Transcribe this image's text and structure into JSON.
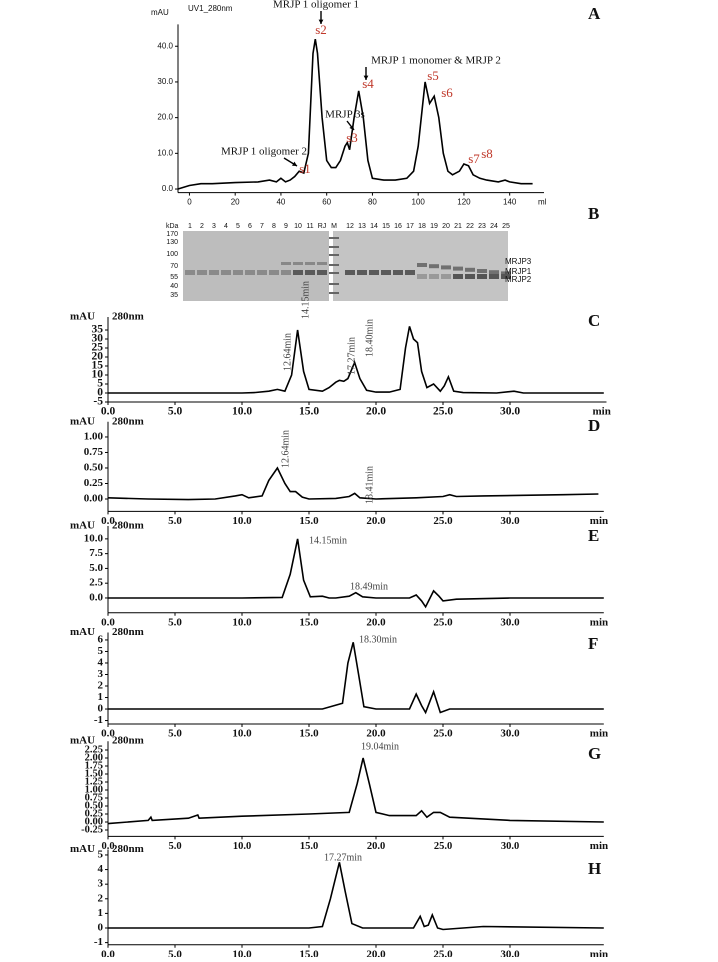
{
  "chart_data": [
    {
      "type": "line",
      "label": "A",
      "title": "UV1_280nm",
      "y_label": "mAU",
      "x_label": "ml",
      "color": "#000000",
      "peak_label_color": "#c0392b",
      "annotations": [
        "MRJP 1 oligomer 1",
        "MRJP 1 monomer & MRJP 2",
        "MRJP 3s",
        "MRJP 1 oligomer 2"
      ],
      "peak_labels": [
        "s1",
        "s2",
        "s3",
        "s4",
        "s5",
        "s6",
        "s7",
        "s8"
      ],
      "x": [
        -5,
        0,
        5,
        10,
        20,
        30,
        35,
        38,
        40,
        42,
        44,
        46,
        48,
        50,
        52,
        54,
        55,
        56,
        58,
        60,
        62,
        64,
        66,
        68,
        69,
        70,
        72,
        74,
        76,
        78,
        80,
        85,
        90,
        95,
        98,
        100,
        103,
        105,
        107,
        109,
        111,
        113,
        115,
        118,
        120,
        122,
        124,
        127,
        130,
        135,
        138,
        140,
        145,
        150
      ],
      "values": [
        0,
        1,
        1.5,
        1.5,
        1.8,
        2,
        2.5,
        2,
        3,
        2,
        2.5,
        3.5,
        5,
        4.5,
        10,
        38,
        42,
        38,
        20,
        8,
        6,
        6,
        8,
        12,
        13,
        11,
        20,
        27.5,
        20,
        8,
        3,
        2.5,
        2.5,
        3,
        5,
        12,
        30,
        24,
        26,
        20,
        10,
        5,
        4,
        5,
        7,
        6.5,
        4,
        3,
        2.5,
        2,
        2.5,
        2,
        1.5,
        1.5
      ],
      "xlim": [
        -5,
        155
      ],
      "ylim": [
        -1,
        45
      ],
      "xticks": [
        0,
        20,
        40,
        60,
        80,
        100,
        120,
        140
      ],
      "yticks": [
        {
          "value": 0,
          "label": "0.0"
        },
        {
          "value": 10,
          "label": "10.0"
        },
        {
          "value": 20,
          "label": "20.0"
        },
        {
          "value": 30,
          "label": "30.0"
        },
        {
          "value": 40,
          "label": "40.0"
        }
      ]
    },
    {
      "type": "gel",
      "label": "B",
      "unit": "kDa",
      "lane_labels": [
        "1",
        "2",
        "3",
        "4",
        "5",
        "6",
        "7",
        "8",
        "9",
        "10",
        "11",
        "RJ",
        "M",
        "12",
        "13",
        "14",
        "15",
        "16",
        "17",
        "18",
        "19",
        "20",
        "21",
        "22",
        "23",
        "24",
        "25"
      ],
      "mw_labels": [
        "170",
        "130",
        "100",
        "70",
        "55",
        "40",
        "35"
      ],
      "band_labels": [
        "MRJP3",
        "MRJP1",
        "MRJP2"
      ]
    },
    {
      "type": "line",
      "label": "C",
      "title": "280nm",
      "y_label": "mAU",
      "x_label": "min",
      "color": "#000000",
      "peak_labels": [
        "12.64min",
        "14.15min",
        "17.27min",
        "18.40min"
      ],
      "x": [
        0,
        5,
        10,
        11,
        12,
        12.64,
        13.2,
        13.7,
        14.15,
        14.6,
        15,
        16,
        16.5,
        17,
        17.27,
        17.6,
        17.9,
        18.4,
        18.8,
        19.3,
        20,
        21,
        21.8,
        22.2,
        22.5,
        22.8,
        23.1,
        23.4,
        23.8,
        24.3,
        24.8,
        25.1,
        25.4,
        25.8,
        26.5,
        29,
        30.3,
        31,
        35,
        37
      ],
      "values": [
        0,
        0,
        0,
        0.3,
        1,
        2,
        1,
        10,
        35,
        12,
        2,
        1,
        3,
        6,
        7,
        6.5,
        8,
        17,
        8,
        1.5,
        0.5,
        0.5,
        2,
        25,
        37,
        30,
        28,
        12,
        3,
        5,
        1,
        4,
        9,
        1,
        0.2,
        0,
        1,
        0,
        0,
        0
      ],
      "xlim": [
        0,
        37.2
      ],
      "ylim": [
        -5,
        40
      ],
      "xticks": [
        {
          "value": 0,
          "label": "0.0"
        },
        {
          "value": 5,
          "label": "5.0"
        },
        {
          "value": 10,
          "label": "10.0"
        },
        {
          "value": 15,
          "label": "15.0"
        },
        {
          "value": 20,
          "label": "20.0"
        },
        {
          "value": 25,
          "label": "25.0"
        },
        {
          "value": 30,
          "label": "30.0"
        }
      ],
      "yticks": [
        -5,
        0,
        5,
        10,
        15,
        20,
        25,
        30,
        35
      ]
    },
    {
      "type": "line",
      "label": "D",
      "title": "280nm",
      "y_label": "mAU",
      "x_label": "min",
      "color": "#000000",
      "peak_labels": [
        "12.64min",
        "18.41min"
      ],
      "x": [
        0,
        3,
        6,
        8,
        9.5,
        10,
        10.5,
        11.5,
        12,
        12.64,
        13.2,
        13.6,
        14,
        14.5,
        15,
        17,
        18,
        18.41,
        18.8,
        20,
        23,
        25,
        25.5,
        26,
        28,
        31,
        34,
        36.6
      ],
      "values": [
        0.02,
        0,
        -0.01,
        0,
        0.05,
        0.07,
        0.02,
        0.05,
        0.3,
        0.5,
        0.25,
        0.12,
        0.12,
        0.03,
        0,
        0.01,
        0.04,
        0.09,
        0.02,
        0,
        0.02,
        0.04,
        0.07,
        0.04,
        0.05,
        0.06,
        0.07,
        0.08
      ],
      "xlim": [
        0,
        37
      ],
      "ylim": [
        -0.2,
        1.18
      ],
      "xticks": [
        {
          "value": 0,
          "label": "0.0"
        },
        {
          "value": 5,
          "label": "5.0"
        },
        {
          "value": 10,
          "label": "10.0"
        },
        {
          "value": 15,
          "label": "15.0"
        },
        {
          "value": 20,
          "label": "20.0"
        },
        {
          "value": 25,
          "label": "25.0"
        },
        {
          "value": 30,
          "label": "30.0"
        }
      ],
      "yticks": [
        {
          "value": 0,
          "label": "0.00"
        },
        {
          "value": 0.25,
          "label": "0.25"
        },
        {
          "value": 0.5,
          "label": "0.50"
        },
        {
          "value": 0.75,
          "label": "0.75"
        },
        {
          "value": 1,
          "label": "1.00"
        }
      ]
    },
    {
      "type": "line",
      "label": "E",
      "title": "280nm",
      "y_label": "mAU",
      "x_label": "min",
      "color": "#000000",
      "peak_labels": [
        "14.15min",
        "18.49min"
      ],
      "x": [
        0,
        10,
        13,
        13.6,
        14.15,
        14.6,
        15.1,
        16,
        16.5,
        17,
        18,
        18.49,
        19,
        20,
        22.5,
        23,
        23.4,
        23.7,
        24.3,
        24.7,
        25,
        26,
        30,
        37
      ],
      "values": [
        0,
        0,
        0.1,
        4,
        10,
        3,
        0.2,
        0.3,
        0,
        0,
        0.3,
        0.9,
        0.2,
        0,
        0,
        0.5,
        -0.5,
        -1.5,
        1.2,
        0.3,
        -0.5,
        -0.2,
        0,
        0
      ],
      "xlim": [
        0,
        37
      ],
      "ylim": [
        -2.5,
        11.5
      ],
      "xticks": [
        {
          "value": 0,
          "label": "0.0"
        },
        {
          "value": 5,
          "label": "5.0"
        },
        {
          "value": 10,
          "label": "10.0"
        },
        {
          "value": 15,
          "label": "15.0"
        },
        {
          "value": 20,
          "label": "20.0"
        },
        {
          "value": 25,
          "label": "25.0"
        },
        {
          "value": 30,
          "label": "30.0"
        }
      ],
      "yticks": [
        {
          "value": 0,
          "label": "0.0"
        },
        {
          "value": 2.5,
          "label": "2.5"
        },
        {
          "value": 5,
          "label": "5.0"
        },
        {
          "value": 7.5,
          "label": "7.5"
        },
        {
          "value": 10,
          "label": "10.0"
        }
      ]
    },
    {
      "type": "line",
      "label": "F",
      "title": "280nm",
      "y_label": "mAU",
      "x_label": "min",
      "color": "#000000",
      "peak_labels": [
        "18.30min"
      ],
      "x": [
        0,
        10,
        16,
        17.5,
        17.9,
        18.3,
        18.7,
        19.1,
        20,
        22.5,
        23,
        23.4,
        23.7,
        24.3,
        24.8,
        25.5,
        30,
        37
      ],
      "values": [
        0,
        0,
        0,
        0.5,
        4,
        5.8,
        3,
        0.2,
        0,
        0,
        1.3,
        0.3,
        -0.3,
        1.5,
        -0.3,
        0,
        0,
        0
      ],
      "xlim": [
        0,
        37
      ],
      "ylim": [
        -1.3,
        6.3
      ],
      "xticks": [
        {
          "value": 0,
          "label": "0.0"
        },
        {
          "value": 5,
          "label": "5.0"
        },
        {
          "value": 10,
          "label": "10.0"
        },
        {
          "value": 15,
          "label": "15.0"
        },
        {
          "value": 20,
          "label": "20.0"
        },
        {
          "value": 25,
          "label": "25.0"
        },
        {
          "value": 30,
          "label": "30.0"
        }
      ],
      "yticks": [
        -1,
        0,
        1,
        2,
        3,
        4,
        5,
        6
      ]
    },
    {
      "type": "line",
      "label": "G",
      "title": "280nm",
      "y_label": "mAU",
      "x_label": "min",
      "color": "#000000",
      "peak_labels": [
        "19.04min"
      ],
      "x": [
        0,
        3,
        3.2,
        3.3,
        6,
        6.7,
        6.8,
        10,
        15,
        18,
        18.6,
        19.04,
        19.5,
        20,
        21,
        23,
        23.4,
        23.8,
        24.3,
        24.8,
        25.5,
        30,
        37
      ],
      "values": [
        -0.05,
        0.05,
        0.15,
        0.05,
        0.12,
        0.22,
        0.12,
        0.18,
        0.25,
        0.3,
        1.2,
        2,
        1.2,
        0.3,
        0.2,
        0.2,
        0.35,
        0.15,
        0.3,
        0.3,
        0.15,
        0.05,
        0
      ],
      "xlim": [
        0,
        37
      ],
      "ylim": [
        -0.45,
        2.4
      ],
      "xticks": [
        {
          "value": 0,
          "label": "0.0"
        },
        {
          "value": 5,
          "label": "5.0"
        },
        {
          "value": 10,
          "label": "10.0"
        },
        {
          "value": 15,
          "label": "15.0"
        },
        {
          "value": 20,
          "label": "20.0"
        },
        {
          "value": 25,
          "label": "25.0"
        },
        {
          "value": 30,
          "label": "30.0"
        }
      ],
      "yticks": [
        -0.25,
        {
          "value": 0,
          "label": "0.00"
        },
        0.25,
        {
          "value": 0.5,
          "label": "0.50"
        },
        0.75,
        {
          "value": 1,
          "label": "1.00"
        },
        1.25,
        {
          "value": 1.5,
          "label": "1.50"
        },
        1.75,
        {
          "value": 2,
          "label": "2.00"
        },
        2.25
      ]
    },
    {
      "type": "line",
      "label": "H",
      "title": "280nm",
      "y_label": "mAU",
      "x_label": "min",
      "color": "#000000",
      "peak_labels": [
        "17.27min"
      ],
      "x": [
        0,
        10,
        15,
        16,
        16.6,
        17.27,
        17.7,
        18.2,
        19,
        22.8,
        23.3,
        23.6,
        23.9,
        24.2,
        24.6,
        25,
        28,
        37
      ],
      "values": [
        0,
        0,
        0,
        0.1,
        2,
        4.5,
        2.5,
        0.3,
        0,
        0,
        0.8,
        0.1,
        0.2,
        0.9,
        0,
        -0.1,
        0.1,
        0
      ],
      "xlim": [
        0,
        37
      ],
      "ylim": [
        -1.15,
        5.1
      ],
      "xticks": [
        {
          "value": 0,
          "label": "0.0"
        },
        {
          "value": 5,
          "label": "5.0"
        },
        {
          "value": 10,
          "label": "10.0"
        },
        {
          "value": 15,
          "label": "15.0"
        },
        {
          "value": 20,
          "label": "20.0"
        },
        {
          "value": 25,
          "label": "25.0"
        },
        {
          "value": 30,
          "label": "30.0"
        }
      ],
      "yticks": [
        -1,
        0,
        1,
        2,
        3,
        4,
        5
      ]
    }
  ]
}
